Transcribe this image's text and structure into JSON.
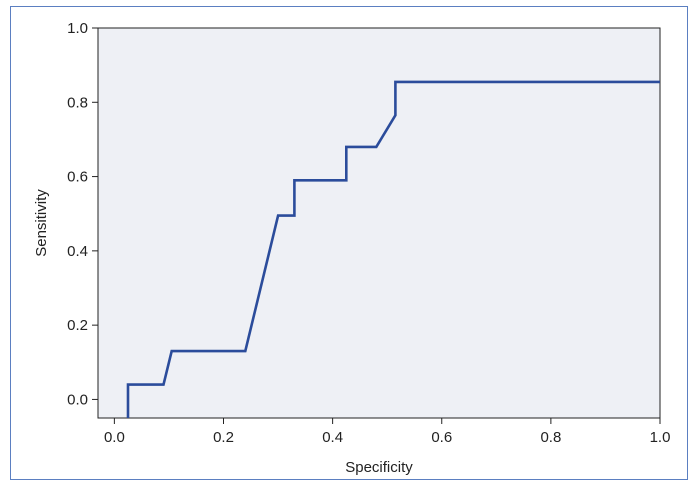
{
  "chart_data": {
    "type": "line",
    "title": "",
    "xlabel": "Specificity",
    "ylabel": "Sensitivity",
    "xlim": [
      -0.03,
      1.0
    ],
    "ylim": [
      -0.05,
      1.0
    ],
    "xticks": [
      0.0,
      0.2,
      0.4,
      0.6,
      0.8,
      1.0
    ],
    "xtick_labels": [
      "0.0",
      "0.2",
      "0.4",
      "0.6",
      "0.8",
      "1.0"
    ],
    "yticks": [
      0.0,
      0.2,
      0.4,
      0.6,
      0.8,
      1.0
    ],
    "ytick_labels": [
      "0.0",
      "0.2",
      "0.4",
      "0.6",
      "0.8",
      "1.0"
    ],
    "grid": false,
    "legend": "none",
    "series": [
      {
        "x": [
          0.025,
          0.025,
          0.09,
          0.09,
          0.105,
          0.105,
          0.24,
          0.3,
          0.33,
          0.33,
          0.425,
          0.425,
          0.48,
          0.515,
          0.515,
          1.0
        ],
        "y": [
          -0.05,
          0.04,
          0.04,
          0.04,
          0.13,
          0.13,
          0.13,
          0.495,
          0.495,
          0.59,
          0.59,
          0.68,
          0.68,
          0.765,
          0.855,
          0.855
        ]
      }
    ],
    "colors": {
      "line": "#2b4c9b",
      "plot_background": "#eef0f5",
      "frame_border": "#5b7fc1",
      "axis": "#222222"
    }
  }
}
